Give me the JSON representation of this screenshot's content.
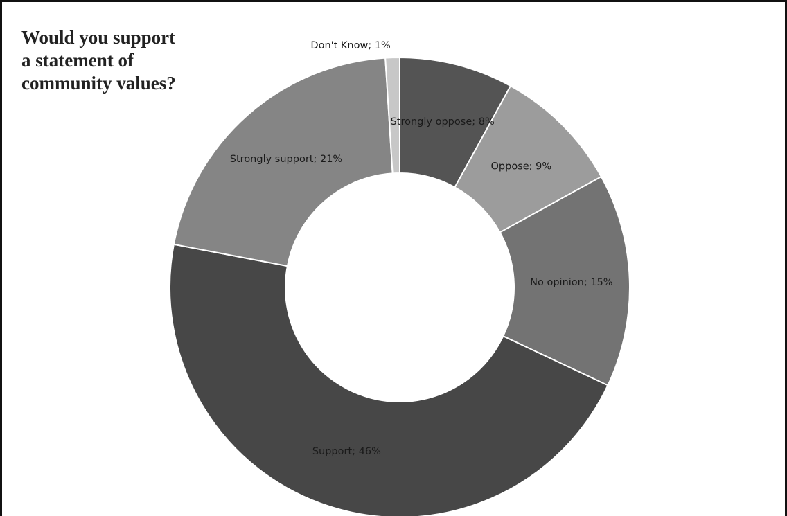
{
  "chart_data": {
    "type": "pie",
    "style": "donut",
    "title_lines": [
      "Would you support",
      "a statement of",
      "community values?"
    ],
    "slices": [
      {
        "label": "Strongly oppose; 8%",
        "value": 8,
        "color": "#545454"
      },
      {
        "label": "Oppose; 9%",
        "value": 9,
        "color": "#9c9c9c"
      },
      {
        "label": "No opinion; 15%",
        "value": 15,
        "color": "#737373"
      },
      {
        "label": "Support; 46%",
        "value": 46,
        "color": "#474747"
      },
      {
        "label": "Strongly support; 21%",
        "value": 21,
        "color": "#858585"
      },
      {
        "label": "Don't Know; 1%",
        "value": 1,
        "color": "#c7c7c7"
      }
    ],
    "legend": "none"
  }
}
